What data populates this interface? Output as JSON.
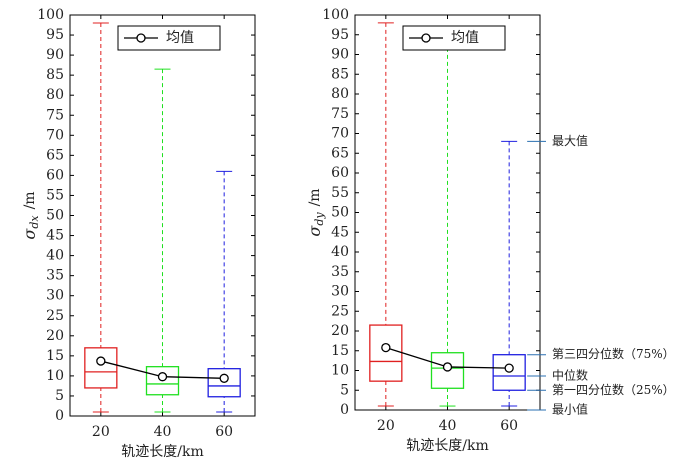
{
  "chart_data": [
    {
      "type": "box",
      "ylabel": "σ",
      "ylabel_sub": "dx",
      "ylabel_unit": "/m",
      "xlabel": "轨迹长度/km",
      "categories": [
        "20",
        "40",
        "60"
      ],
      "ylim": [
        0,
        100
      ],
      "yticks": [
        0,
        5,
        10,
        15,
        20,
        25,
        30,
        35,
        40,
        45,
        50,
        55,
        60,
        65,
        70,
        75,
        80,
        85,
        90,
        95,
        100
      ],
      "boxes": [
        {
          "color": "#e02020",
          "min": 1,
          "q1": 7,
          "median": 11,
          "q3": 17,
          "max": 98
        },
        {
          "color": "#20e020",
          "min": 1,
          "q1": 5.3,
          "median": 8,
          "q3": 12.3,
          "max": 86.5
        },
        {
          "color": "#2020e0",
          "min": 1,
          "q1": 4.8,
          "median": 7.5,
          "q3": 11.8,
          "max": 61
        }
      ],
      "mean": {
        "name": "均值",
        "color": "#000000",
        "values": [
          13.7,
          9.8,
          9.4
        ]
      }
    },
    {
      "type": "box",
      "ylabel": "σ",
      "ylabel_sub": "dy",
      "ylabel_unit": "/m",
      "xlabel": "轨迹长度/km",
      "categories": [
        "20",
        "40",
        "60"
      ],
      "ylim": [
        0,
        100
      ],
      "yticks": [
        0,
        5,
        10,
        15,
        20,
        25,
        30,
        35,
        40,
        45,
        50,
        55,
        60,
        65,
        70,
        75,
        80,
        85,
        90,
        95,
        100
      ],
      "boxes": [
        {
          "color": "#e02020",
          "min": 1,
          "q1": 7.3,
          "median": 12.3,
          "q3": 21.5,
          "max": 98
        },
        {
          "color": "#20e020",
          "min": 1,
          "q1": 5.5,
          "median": 10.6,
          "q3": 14.5,
          "max": 97
        },
        {
          "color": "#2020e0",
          "min": 1,
          "q1": 5,
          "median": 8.6,
          "q3": 14,
          "max": 68
        }
      ],
      "mean": {
        "name": "均值",
        "color": "#000000",
        "values": [
          15.8,
          10.9,
          10.6
        ]
      },
      "annotations": [
        "最大值",
        "第三四分位数（75%）",
        "中位数",
        "第一四分位数（25%）",
        "最小值"
      ]
    }
  ]
}
